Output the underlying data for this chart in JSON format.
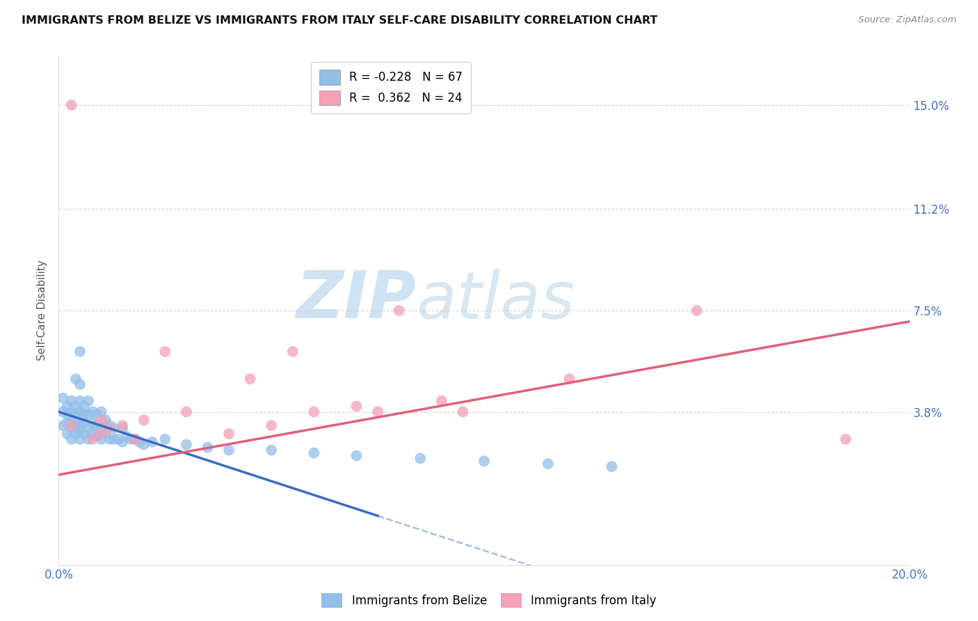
{
  "title": "IMMIGRANTS FROM BELIZE VS IMMIGRANTS FROM ITALY SELF-CARE DISABILITY CORRELATION CHART",
  "source": "Source: ZipAtlas.com",
  "ylabel": "Self-Care Disability",
  "xlim": [
    0.0,
    0.2
  ],
  "ylim": [
    -0.018,
    0.168
  ],
  "ytick_vals": [
    0.038,
    0.075,
    0.112,
    0.15
  ],
  "ytick_labels": [
    "3.8%",
    "7.5%",
    "11.2%",
    "15.0%"
  ],
  "xtick_vals": [
    0.0,
    0.05,
    0.1,
    0.15,
    0.2
  ],
  "xtick_labels": [
    "0.0%",
    "",
    "",
    "",
    "20.0%"
  ],
  "belize_R": -0.228,
  "belize_N": 67,
  "italy_R": 0.362,
  "italy_N": 24,
  "belize_color": "#92BEE8",
  "italy_color": "#F4A0B5",
  "belize_line_color": "#3A6BC4",
  "italy_line_color": "#E0607A",
  "belize_line_x0": 0.0,
  "belize_line_y0": 0.038,
  "belize_line_x1": 0.075,
  "belize_line_y1": 0.0,
  "belize_line_solid_end": 0.075,
  "belize_line_dash_end": 0.2,
  "italy_line_x0": 0.0,
  "italy_line_y0": 0.015,
  "italy_line_x1": 0.2,
  "italy_line_y1": 0.071,
  "background_color": "#FFFFFF",
  "grid_color": "#CCCCCC",
  "watermark_zip": "ZIP",
  "watermark_atlas": "atlas",
  "belize_pts_x": [
    0.001,
    0.001,
    0.001,
    0.002,
    0.002,
    0.002,
    0.002,
    0.003,
    0.003,
    0.003,
    0.003,
    0.003,
    0.004,
    0.004,
    0.004,
    0.004,
    0.004,
    0.005,
    0.005,
    0.005,
    0.005,
    0.005,
    0.005,
    0.006,
    0.006,
    0.006,
    0.006,
    0.007,
    0.007,
    0.007,
    0.007,
    0.008,
    0.008,
    0.008,
    0.009,
    0.009,
    0.009,
    0.01,
    0.01,
    0.01,
    0.011,
    0.011,
    0.012,
    0.012,
    0.013,
    0.013,
    0.014,
    0.015,
    0.015,
    0.016,
    0.017,
    0.018,
    0.019,
    0.02,
    0.022,
    0.025,
    0.03,
    0.035,
    0.04,
    0.05,
    0.06,
    0.07,
    0.085,
    0.1,
    0.115,
    0.13,
    0.005
  ],
  "belize_pts_y": [
    0.033,
    0.038,
    0.043,
    0.03,
    0.034,
    0.037,
    0.04,
    0.028,
    0.032,
    0.035,
    0.038,
    0.042,
    0.03,
    0.033,
    0.037,
    0.04,
    0.05,
    0.028,
    0.031,
    0.034,
    0.038,
    0.042,
    0.048,
    0.03,
    0.034,
    0.037,
    0.04,
    0.028,
    0.032,
    0.037,
    0.042,
    0.03,
    0.034,
    0.038,
    0.029,
    0.033,
    0.037,
    0.028,
    0.032,
    0.038,
    0.03,
    0.035,
    0.028,
    0.033,
    0.028,
    0.032,
    0.028,
    0.027,
    0.032,
    0.029,
    0.028,
    0.028,
    0.027,
    0.026,
    0.027,
    0.028,
    0.026,
    0.025,
    0.024,
    0.024,
    0.023,
    0.022,
    0.021,
    0.02,
    0.019,
    0.018,
    0.06
  ],
  "italy_pts_x": [
    0.003,
    0.008,
    0.01,
    0.01,
    0.012,
    0.015,
    0.018,
    0.02,
    0.025,
    0.03,
    0.04,
    0.045,
    0.05,
    0.055,
    0.06,
    0.07,
    0.075,
    0.08,
    0.09,
    0.095,
    0.12,
    0.15,
    0.185,
    0.003
  ],
  "italy_pts_y": [
    0.15,
    0.028,
    0.03,
    0.035,
    0.032,
    0.033,
    0.028,
    0.035,
    0.06,
    0.038,
    0.03,
    0.05,
    0.033,
    0.06,
    0.038,
    0.04,
    0.038,
    0.075,
    0.042,
    0.038,
    0.05,
    0.075,
    0.028,
    0.033
  ]
}
